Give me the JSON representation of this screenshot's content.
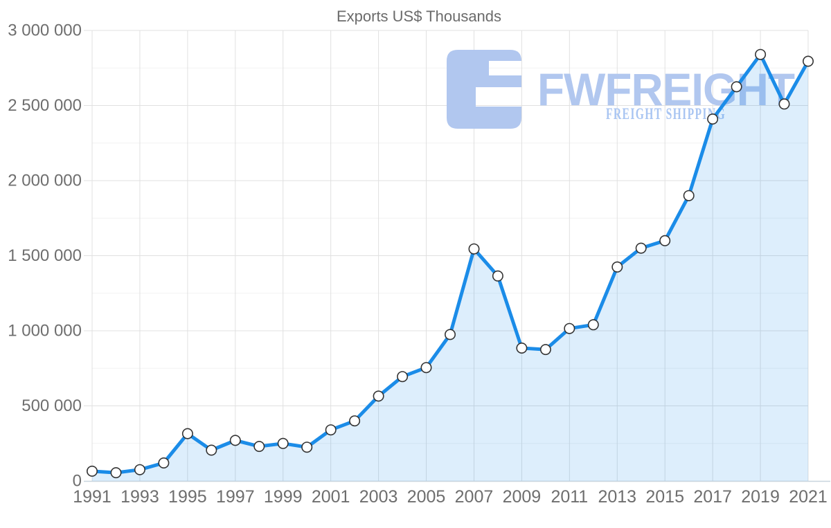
{
  "title": "Exports US$ Thousands",
  "watermark": {
    "brand": "FWFREIGHT",
    "tagline": "FREIGHT SHIPPING",
    "logo_color": "#b1c7ef",
    "brand_color": "#b1c7ef",
    "tagline_color": "#a9c5f2"
  },
  "chart_data": {
    "type": "area",
    "title": "Exports US$ Thousands",
    "x": [
      1991,
      1992,
      1993,
      1994,
      1995,
      1996,
      1997,
      1998,
      1999,
      2000,
      2001,
      2002,
      2003,
      2004,
      2005,
      2006,
      2007,
      2008,
      2009,
      2010,
      2011,
      2012,
      2013,
      2014,
      2015,
      2016,
      2017,
      2018,
      2019,
      2020,
      2021
    ],
    "series": [
      {
        "name": "Exports US$ Thousands",
        "values": [
          65000,
          55000,
          75000,
          120000,
          315000,
          205000,
          270000,
          230000,
          250000,
          225000,
          340000,
          400000,
          565000,
          695000,
          755000,
          975000,
          1545000,
          1365000,
          885000,
          875000,
          1015000,
          1040000,
          1425000,
          1550000,
          1600000,
          1900000,
          2410000,
          2625000,
          2840000,
          2510000,
          2795000
        ]
      }
    ],
    "xlabel": "",
    "ylabel": "",
    "ylim": [
      0,
      3000000
    ],
    "ytick_interval": 500000,
    "ytick_minor_interval": 250000,
    "ytick_labels": [
      "0",
      "500 000",
      "1 000 000",
      "1 500 000",
      "2 000 000",
      "2 500 000",
      "3 000 000"
    ],
    "xtick_labels": [
      "1991",
      "1993",
      "1995",
      "1997",
      "1999",
      "2001",
      "2003",
      "2005",
      "2007",
      "2009",
      "2011",
      "2013",
      "2015",
      "2017",
      "2019",
      "2021"
    ],
    "grid": true,
    "legend": "none",
    "colors": {
      "line": "#1b8ce8",
      "area_fill": "rgba(27,140,232,0.15)",
      "marker_fill": "#ffffff",
      "marker_stroke": "#333333",
      "gridline_major": "#e0e0e0",
      "gridline_minor": "#f2f2f2",
      "axis_line": "#c8d4de",
      "label_text": "#6e6e6e",
      "title_text": "#6b6b6b"
    }
  }
}
